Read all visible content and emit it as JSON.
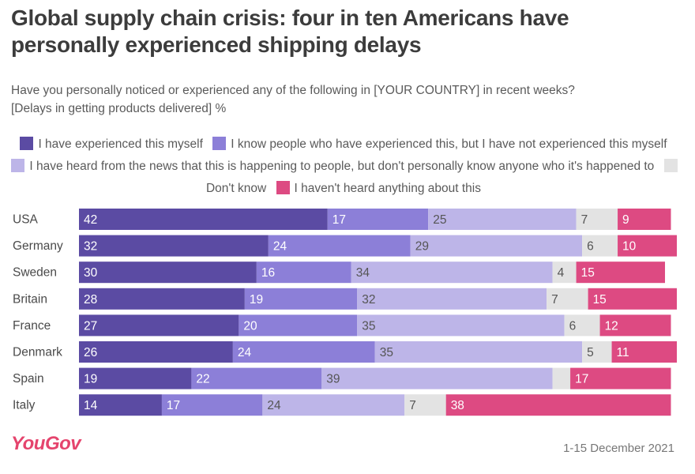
{
  "title": "Global supply chain crisis: four in ten Americans have personally experienced shipping delays",
  "subtitle_line1": "Have you personally noticed or experienced any of the following in [YOUR COUNTRY] in recent weeks?",
  "subtitle_line2": "[Delays in getting products delivered] %",
  "footer": {
    "brand": "YouGov",
    "date": "1-15 December 2021"
  },
  "chart_data": {
    "type": "bar",
    "orientation": "horizontal",
    "stacked": true,
    "categories": [
      "USA",
      "Germany",
      "Sweden",
      "Britain",
      "France",
      "Denmark",
      "Spain",
      "Italy"
    ],
    "series": [
      {
        "name": "I have experienced this myself",
        "color": "#5b4ba3",
        "label_color": "#ffffff",
        "values": [
          42,
          32,
          30,
          28,
          27,
          26,
          19,
          14
        ]
      },
      {
        "name": "I know people who have experienced this, but I have not experienced this myself",
        "color": "#8c7fd8",
        "label_color": "#ffffff",
        "values": [
          17,
          24,
          16,
          19,
          20,
          24,
          22,
          17
        ]
      },
      {
        "name": "I have heard from the news that this is happening to people, but don't personally know anyone who it's happened to",
        "color": "#bdb5e8",
        "label_color": "#555555",
        "values": [
          25,
          29,
          34,
          32,
          35,
          35,
          39,
          24
        ]
      },
      {
        "name": "Don't know",
        "color": "#e3e3e3",
        "label_color": "#555555",
        "values": [
          7,
          6,
          4,
          7,
          6,
          5,
          null,
          7
        ]
      },
      {
        "name": "I haven't heard anything about this",
        "color": "#dd4a82",
        "label_color": "#ffffff",
        "values": [
          9,
          10,
          15,
          15,
          12,
          11,
          17,
          38
        ]
      }
    ],
    "spain_dont_know_estimate": 3,
    "xlim": [
      0,
      101
    ]
  }
}
